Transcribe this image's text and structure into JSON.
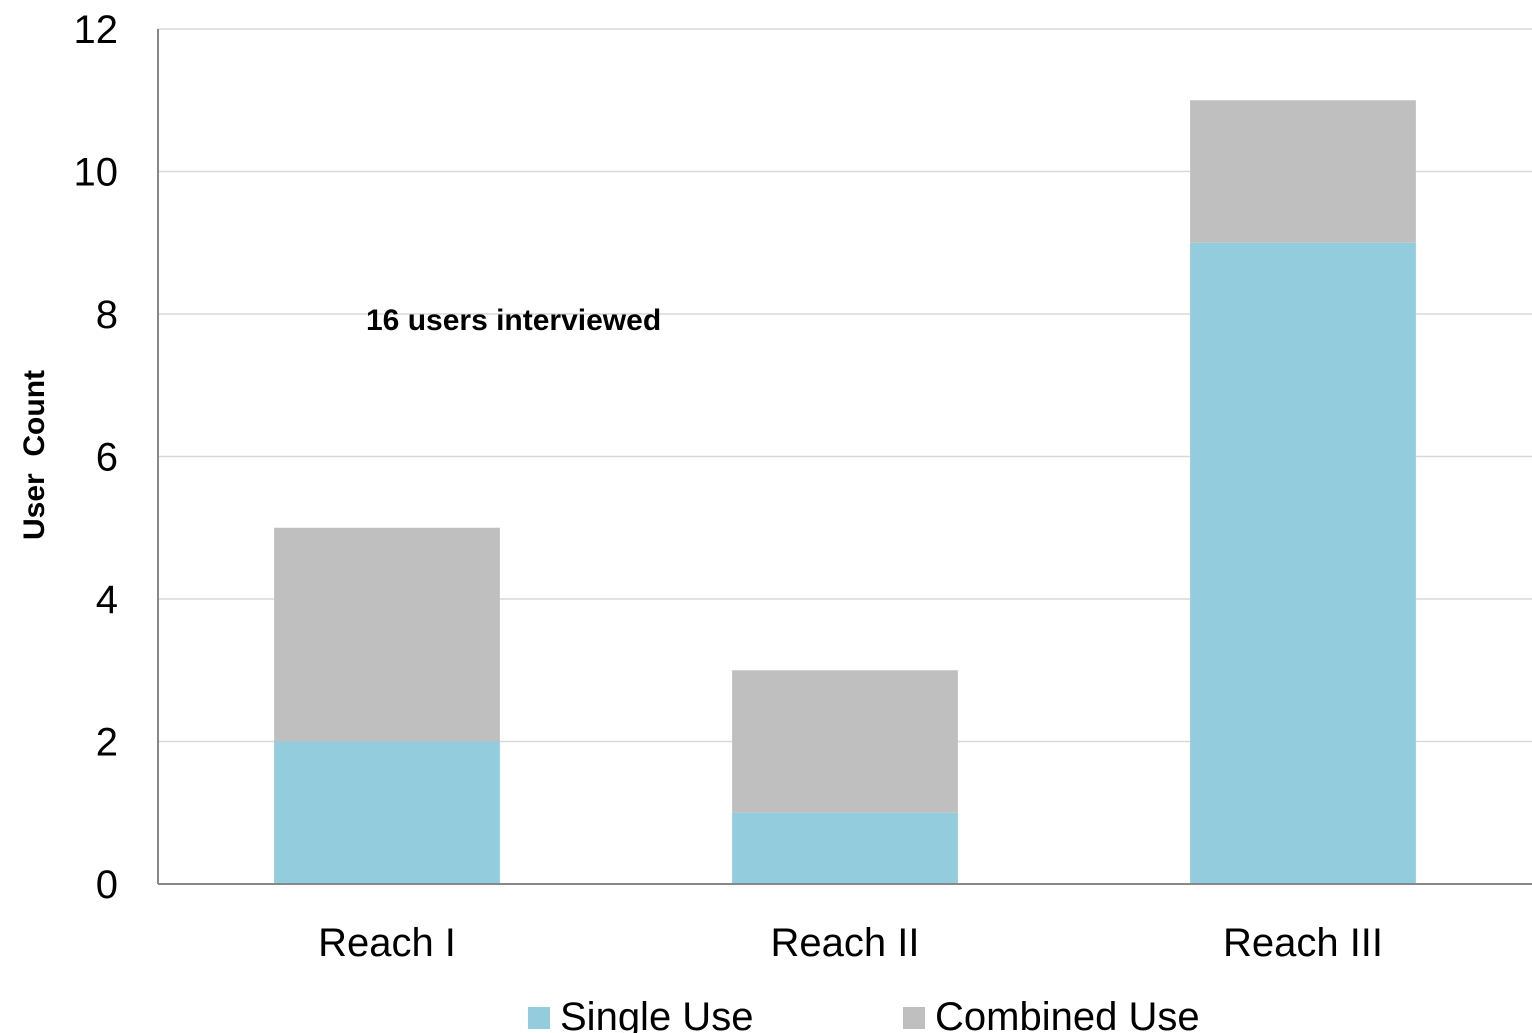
{
  "chart_data": {
    "type": "bar",
    "stacked": true,
    "categories": [
      "Reach I",
      "Reach II",
      "Reach III"
    ],
    "series": [
      {
        "name": "Single Use",
        "values": [
          2,
          1,
          9
        ],
        "color": "#93CDDD"
      },
      {
        "name": "Combined Use",
        "values": [
          3,
          2,
          2
        ],
        "color": "#BFBFBF"
      }
    ],
    "ylabel": "User  Count",
    "xlabel": "",
    "ylim": [
      0,
      12
    ],
    "yticks": [
      0,
      2,
      4,
      6,
      8,
      10,
      12
    ],
    "grid": true,
    "legend": "bottom",
    "annotation": "16 users interviewed"
  }
}
